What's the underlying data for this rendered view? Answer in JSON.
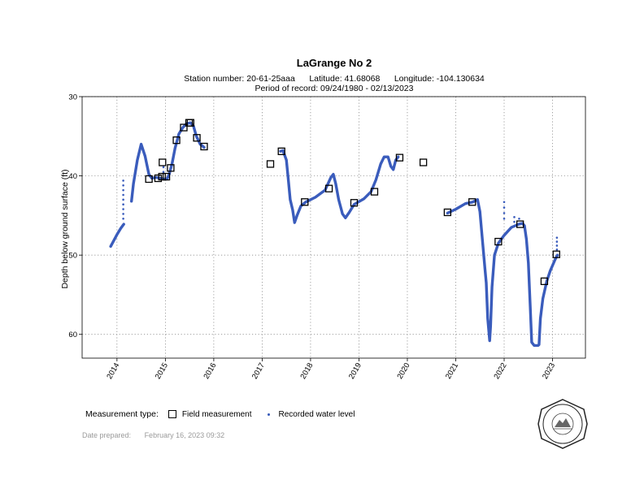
{
  "header": {
    "title": "LaGrange No 2",
    "station": "Station number: 20-61-25aaa",
    "latitude": "Latitude: 41.68068",
    "longitude": "Longitude: -104.130634",
    "period": "Period of record: 09/24/1980 - 02/13/2023"
  },
  "legend": {
    "title": "Measurement type:",
    "field": "Field measurement",
    "recorded": "Recorded water level"
  },
  "footer": {
    "label": "Date prepared:",
    "date": "February 16, 2023 09:32"
  },
  "colors": {
    "series": "#3a5cbc",
    "grid": "#7a7a7a"
  },
  "icons": {
    "seal": "agency-seal-icon"
  },
  "chart_data": {
    "type": "line",
    "title": "LaGrange No 2",
    "ylabel": "Depth below ground surface (ft)",
    "xlabel": "",
    "xlim": [
      2013.28,
      2023.68
    ],
    "ylim": [
      63.0,
      30.0
    ],
    "y_inverted": true,
    "grid": true,
    "legend_position": "bottom-left",
    "xticks": [
      "2014",
      "2015",
      "2016",
      "2017",
      "2018",
      "2019",
      "2020",
      "2021",
      "2022",
      "2023"
    ],
    "yticks": [
      "30",
      "40",
      "50",
      "60"
    ],
    "series": [
      {
        "name": "Recorded water level",
        "segments": [
          [
            [
              2013.87,
              48.9
            ],
            [
              2014.0,
              47.4
            ],
            [
              2014.08,
              46.6
            ],
            [
              2014.14,
              46.1
            ]
          ],
          [
            [
              2014.3,
              43.2
            ],
            [
              2014.34,
              41.0
            ],
            [
              2014.42,
              38.0
            ],
            [
              2014.5,
              36.0
            ],
            [
              2014.58,
              37.5
            ],
            [
              2014.66,
              39.8
            ],
            [
              2014.72,
              40.3
            ],
            [
              2014.8,
              40.2
            ],
            [
              2014.9,
              40.3
            ],
            [
              2014.97,
              40.4
            ],
            [
              2015.03,
              40.4
            ],
            [
              2015.08,
              39.8
            ],
            [
              2015.14,
              38.4
            ],
            [
              2015.2,
              36.5
            ],
            [
              2015.28,
              34.7
            ],
            [
              2015.36,
              33.9
            ],
            [
              2015.44,
              33.4
            ],
            [
              2015.52,
              33.3
            ],
            [
              2015.58,
              33.7
            ],
            [
              2015.64,
              35.0
            ],
            [
              2015.72,
              36.0
            ],
            [
              2015.8,
              36.4
            ]
          ],
          [
            [
              2017.38,
              36.9
            ],
            [
              2017.43,
              36.8
            ],
            [
              2017.5,
              38.0
            ],
            [
              2017.54,
              40.5
            ],
            [
              2017.58,
              43.0
            ],
            [
              2017.63,
              44.3
            ],
            [
              2017.67,
              45.9
            ],
            [
              2017.72,
              45.0
            ],
            [
              2017.8,
              43.8
            ],
            [
              2017.9,
              43.3
            ],
            [
              2018.1,
              42.7
            ],
            [
              2018.3,
              41.8
            ],
            [
              2018.42,
              40.2
            ],
            [
              2018.47,
              39.8
            ],
            [
              2018.52,
              41.0
            ],
            [
              2018.58,
              43.0
            ],
            [
              2018.66,
              44.8
            ],
            [
              2018.72,
              45.3
            ],
            [
              2018.8,
              44.6
            ],
            [
              2018.9,
              43.6
            ],
            [
              2019.1,
              42.9
            ],
            [
              2019.25,
              42.0
            ],
            [
              2019.35,
              40.5
            ],
            [
              2019.45,
              38.5
            ],
            [
              2019.52,
              37.6
            ],
            [
              2019.6,
              37.6
            ],
            [
              2019.66,
              38.8
            ],
            [
              2019.71,
              39.2
            ],
            [
              2019.76,
              38.0
            ],
            [
              2019.81,
              37.6
            ]
          ],
          [
            [
              2020.83,
              44.7
            ],
            [
              2021.0,
              44.2
            ],
            [
              2021.2,
              43.5
            ],
            [
              2021.35,
              43.3
            ],
            [
              2021.45,
              43.0
            ],
            [
              2021.5,
              44.5
            ],
            [
              2021.55,
              48.0
            ],
            [
              2021.6,
              51.5
            ],
            [
              2021.63,
              53.5
            ],
            [
              2021.66,
              58.0
            ],
            [
              2021.7,
              60.8
            ],
            [
              2021.72,
              59.0
            ],
            [
              2021.75,
              54.0
            ],
            [
              2021.8,
              50.0
            ],
            [
              2021.88,
              48.5
            ],
            [
              2022.0,
              47.5
            ],
            [
              2022.15,
              46.5
            ],
            [
              2022.3,
              46.1
            ],
            [
              2022.38,
              46.0
            ],
            [
              2022.42,
              46.3
            ],
            [
              2022.46,
              48.0
            ],
            [
              2022.5,
              51.0
            ],
            [
              2022.54,
              56.5
            ],
            [
              2022.57,
              61.0
            ],
            [
              2022.62,
              61.4
            ],
            [
              2022.7,
              61.4
            ],
            [
              2022.72,
              61.3
            ],
            [
              2022.75,
              58.0
            ],
            [
              2022.8,
              55.5
            ],
            [
              2022.88,
              53.3
            ],
            [
              2022.95,
              52.0
            ],
            [
              2023.05,
              50.6
            ],
            [
              2023.1,
              50.0
            ]
          ]
        ]
      },
      {
        "name": "Field measurement",
        "points": [
          [
            2014.66,
            40.4
          ],
          [
            2014.85,
            40.3
          ],
          [
            2014.94,
            38.3
          ],
          [
            2014.93,
            40.1
          ],
          [
            2015.02,
            40.1
          ],
          [
            2015.11,
            39.0
          ],
          [
            2015.23,
            35.5
          ],
          [
            2015.38,
            33.9
          ],
          [
            2015.49,
            33.3
          ],
          [
            2015.52,
            33.3
          ],
          [
            2015.65,
            35.2
          ],
          [
            2015.8,
            36.3
          ],
          [
            2017.17,
            38.5
          ],
          [
            2017.4,
            36.9
          ],
          [
            2017.88,
            43.3
          ],
          [
            2018.38,
            41.6
          ],
          [
            2018.9,
            43.4
          ],
          [
            2019.32,
            42.0
          ],
          [
            2019.84,
            37.7
          ],
          [
            2020.33,
            38.3
          ],
          [
            2020.83,
            44.6
          ],
          [
            2021.34,
            43.3
          ],
          [
            2021.88,
            48.3
          ],
          [
            2022.33,
            46.1
          ],
          [
            2022.83,
            53.3
          ],
          [
            2023.08,
            49.9
          ]
        ]
      },
      {
        "name": "Recorded water level (scattered readings)",
        "points": [
          [
            2014.13,
            40.6
          ],
          [
            2014.13,
            41.2
          ],
          [
            2014.13,
            41.8
          ],
          [
            2014.13,
            42.4
          ],
          [
            2014.13,
            43.0
          ],
          [
            2014.13,
            43.6
          ],
          [
            2014.13,
            44.2
          ],
          [
            2014.13,
            44.8
          ],
          [
            2014.13,
            45.4
          ],
          [
            2022.0,
            43.3
          ],
          [
            2022.0,
            44.0
          ],
          [
            2022.0,
            44.7
          ],
          [
            2022.0,
            45.4
          ],
          [
            2022.21,
            45.2
          ],
          [
            2022.21,
            45.8
          ],
          [
            2022.31,
            45.4
          ],
          [
            2023.09,
            47.8
          ],
          [
            2023.09,
            48.3
          ],
          [
            2023.09,
            48.8
          ],
          [
            2023.09,
            49.3
          ],
          [
            2014.96,
            38.9
          ],
          [
            2014.96,
            39.5
          ]
        ]
      }
    ]
  }
}
